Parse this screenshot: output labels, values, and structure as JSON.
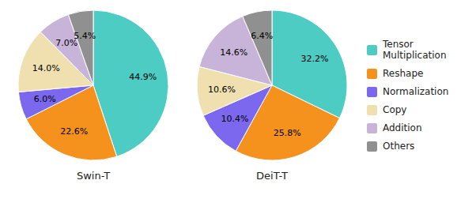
{
  "chart_data": {
    "type": "pie",
    "categories": [
      "Tensor\nMultiplication",
      "Reshape",
      "Normalization",
      "Copy",
      "Addition",
      "Others"
    ],
    "colors": [
      "#4DCCC4",
      "#F5921E",
      "#7B68EE",
      "#F0E0B0",
      "#C8B4D8",
      "#909090"
    ],
    "series": [
      {
        "name": "Swin-T",
        "values": [
          44.9,
          22.6,
          6.0,
          14.0,
          7.0,
          5.4
        ],
        "value_labels": [
          "44.9%",
          "22.6%",
          "6.0%",
          "14.0%",
          "7.0%",
          "5.4%"
        ]
      },
      {
        "name": "DeiT-T",
        "values": [
          32.2,
          25.8,
          10.4,
          10.6,
          14.6,
          6.4
        ],
        "value_labels": [
          "32.2%",
          "25.8%",
          "10.4%",
          "10.6%",
          "14.6%",
          "6.4%"
        ]
      }
    ],
    "data_labels": true,
    "legend": "right"
  }
}
